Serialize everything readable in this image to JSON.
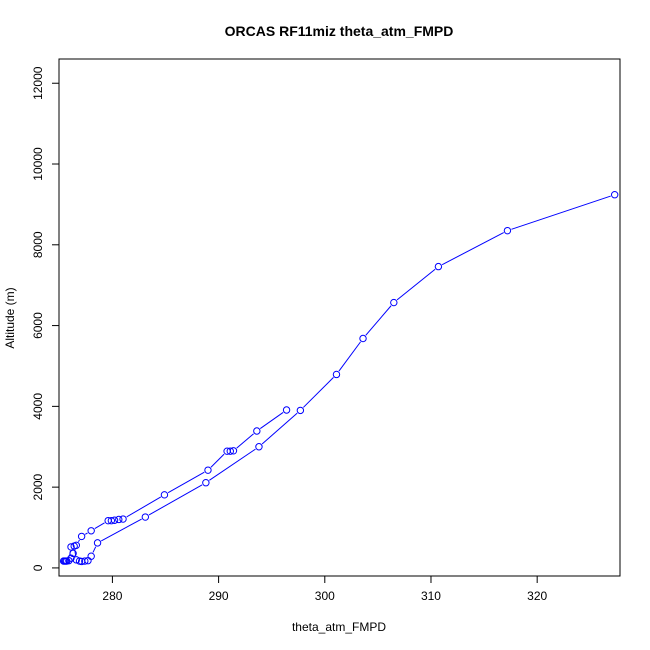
{
  "chart_data": {
    "type": "line",
    "title": "ORCAS RF11miz theta_atm_FMPD",
    "xlabel": "theta_atm_FMPD",
    "ylabel": "Altitude (m)",
    "xlim": [
      274.97,
      327.8
    ],
    "ylim": [
      -200,
      12600
    ],
    "xticks": [
      280,
      290,
      300,
      310,
      320
    ],
    "yticks": [
      0,
      2000,
      4000,
      6000,
      8000,
      10000,
      12000
    ],
    "color": "#0000ff",
    "markers": "open-circle",
    "grid": false,
    "series": [
      {
        "points": [
          [
            275.4,
            170
          ],
          [
            275.6,
            170
          ],
          [
            275.9,
            180
          ],
          [
            276.1,
            520
          ],
          [
            276.4,
            540
          ],
          [
            276.6,
            200
          ],
          [
            276.9,
            170
          ],
          [
            277.1,
            160
          ],
          [
            277.4,
            170
          ],
          [
            277.7,
            180
          ],
          [
            278.0,
            290
          ],
          [
            278.6,
            620
          ],
          [
            283.1,
            1260
          ],
          [
            288.8,
            2110
          ],
          [
            293.8,
            3000
          ],
          [
            297.7,
            3900
          ],
          [
            301.1,
            4790
          ],
          [
            303.6,
            5680
          ],
          [
            306.5,
            6570
          ],
          [
            310.7,
            7460
          ],
          [
            317.2,
            8350
          ],
          [
            327.3,
            9240
          ]
        ]
      },
      {
        "points": [
          [
            296.4,
            3910
          ],
          [
            293.6,
            3390
          ],
          [
            291.4,
            2900
          ],
          [
            291.1,
            2890
          ],
          [
            290.8,
            2890
          ],
          [
            289.0,
            2420
          ],
          [
            284.9,
            1810
          ],
          [
            281.0,
            1210
          ],
          [
            280.6,
            1200
          ],
          [
            280.2,
            1180
          ],
          [
            279.9,
            1170
          ],
          [
            279.6,
            1170
          ],
          [
            278.0,
            920
          ],
          [
            277.1,
            780
          ],
          [
            276.6,
            560
          ],
          [
            276.3,
            360
          ],
          [
            276.1,
            240
          ],
          [
            275.7,
            170
          ],
          [
            275.5,
            170
          ]
        ]
      }
    ]
  }
}
